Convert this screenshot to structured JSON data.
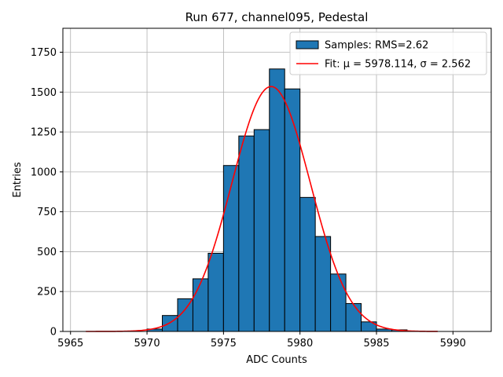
{
  "chart_data": {
    "type": "bar",
    "title": "Run 677, channel095, Pedestal",
    "xlabel": "ADC Counts",
    "ylabel": "Entries",
    "xlim": [
      5964.5,
      5992.5
    ],
    "ylim": [
      0,
      1900
    ],
    "grid": true,
    "legend_position": "top-right",
    "x_ticks": [
      5965,
      5970,
      5975,
      5980,
      5985,
      5990
    ],
    "x_tick_labels": [
      "5965",
      "5970",
      "5975",
      "5980",
      "5985",
      "5990"
    ],
    "y_ticks": [
      0,
      250,
      500,
      750,
      1000,
      1250,
      1500,
      1750
    ],
    "y_tick_labels": [
      "0",
      "250",
      "500",
      "750",
      "1000",
      "1250",
      "1500",
      "1750"
    ],
    "bin_width": 1,
    "bins": [
      {
        "x": 5970,
        "count": 15
      },
      {
        "x": 5971,
        "count": 100
      },
      {
        "x": 5972,
        "count": 205
      },
      {
        "x": 5973,
        "count": 330
      },
      {
        "x": 5974,
        "count": 490
      },
      {
        "x": 5975,
        "count": 1040
      },
      {
        "x": 5976,
        "count": 1225
      },
      {
        "x": 5977,
        "count": 1265
      },
      {
        "x": 5978,
        "count": 1645
      },
      {
        "x": 5979,
        "count": 1520
      },
      {
        "x": 5980,
        "count": 840
      },
      {
        "x": 5981,
        "count": 595
      },
      {
        "x": 5982,
        "count": 360
      },
      {
        "x": 5983,
        "count": 175
      },
      {
        "x": 5984,
        "count": 60
      },
      {
        "x": 5985,
        "count": 15
      },
      {
        "x": 5986,
        "count": 10
      }
    ],
    "fit": {
      "mu": 5978.114,
      "sigma": 2.562,
      "amplitude": 1535,
      "x_range": [
        5966,
        5989
      ]
    },
    "legend": [
      {
        "label": "Samples: RMS=2.62",
        "kind": "patch",
        "color": "#1f77b4"
      },
      {
        "label": "Fit: μ = 5978.114, σ = 2.562",
        "kind": "line",
        "color": "#ff0000"
      }
    ],
    "colors": {
      "bar_fill": "#1f77b4",
      "bar_edge": "#000000",
      "fit_line": "#ff0000",
      "grid": "#b0b0b0"
    }
  }
}
